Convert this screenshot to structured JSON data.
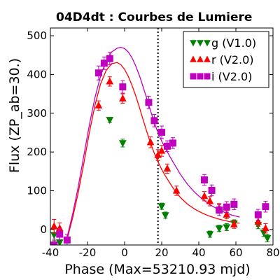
{
  "chart_data": {
    "type": "scatter",
    "title": "04D4dt : Courbes de Lumiere",
    "xlabel": "Phase (Max=53210.93 mjd)",
    "ylabel": "Flux (ZP_ab=30.)",
    "xlim": [
      -40,
      80
    ],
    "ylim": [
      -40,
      520
    ],
    "xticks": [
      -40,
      -20,
      0,
      20,
      40,
      60,
      80
    ],
    "yticks": [
      0,
      100,
      200,
      300,
      400,
      500
    ],
    "grid": false,
    "legend_position": "top-right",
    "max_marker_x": 18,
    "series": [
      {
        "name": "g (V1.0)",
        "marker": "triangle-down",
        "color": "#008000",
        "points": [
          {
            "x": -38,
            "y": -14,
            "err": 15
          },
          {
            "x": -35,
            "y": -33,
            "err": 14
          },
          {
            "x": -8,
            "y": 283,
            "err": 6
          },
          {
            "x": -1,
            "y": 223,
            "err": 10
          },
          {
            "x": 20,
            "y": 60,
            "err": 8
          },
          {
            "x": 22,
            "y": 37,
            "err": 8
          },
          {
            "x": 46,
            "y": -12,
            "err": 8
          },
          {
            "x": 51,
            "y": 3,
            "err": 8
          },
          {
            "x": 55,
            "y": 6,
            "err": 9
          },
          {
            "x": 59,
            "y": 16,
            "err": 9
          },
          {
            "x": 72,
            "y": 12,
            "err": 10
          },
          {
            "x": 75,
            "y": -8,
            "err": 10
          },
          {
            "x": 77,
            "y": -22,
            "err": 10
          }
        ]
      },
      {
        "name": "r (V2.0)",
        "marker": "triangle-up",
        "color": "#ff0000",
        "points": [
          {
            "x": -38,
            "y": 8,
            "err": 18
          },
          {
            "x": -35,
            "y": 3,
            "err": 14
          },
          {
            "x": -14,
            "y": 320,
            "err": 12
          },
          {
            "x": -8,
            "y": 382,
            "err": 12
          },
          {
            "x": -1,
            "y": 338,
            "err": 12
          },
          {
            "x": 14,
            "y": 225,
            "err": 14
          },
          {
            "x": 18,
            "y": 192,
            "err": 14
          },
          {
            "x": 20,
            "y": 203,
            "err": 14
          },
          {
            "x": 23,
            "y": 157,
            "err": 12
          },
          {
            "x": 28,
            "y": 100,
            "err": 12
          },
          {
            "x": 43,
            "y": 86,
            "err": 12
          },
          {
            "x": 46,
            "y": 73,
            "err": 12
          },
          {
            "x": 51,
            "y": 55,
            "err": 12
          },
          {
            "x": 55,
            "y": 38,
            "err": 10
          },
          {
            "x": 59,
            "y": 13,
            "err": 10
          },
          {
            "x": 72,
            "y": 20,
            "err": 12
          },
          {
            "x": 76,
            "y": 3,
            "err": 12
          }
        ]
      },
      {
        "name": "i (V2.0)",
        "marker": "square",
        "color": "#bf00bf",
        "points": [
          {
            "x": -38,
            "y": -40,
            "err": 15
          },
          {
            "x": -35,
            "y": -12,
            "err": 14
          },
          {
            "x": -31,
            "y": -27,
            "err": 14
          },
          {
            "x": -14,
            "y": 404,
            "err": 18
          },
          {
            "x": -11,
            "y": 429,
            "err": 16
          },
          {
            "x": -8,
            "y": 441,
            "err": 16
          },
          {
            "x": -1,
            "y": 368,
            "err": 16
          },
          {
            "x": 13,
            "y": 328,
            "err": 16
          },
          {
            "x": 16,
            "y": 281,
            "err": 16
          },
          {
            "x": 20,
            "y": 251,
            "err": 16
          },
          {
            "x": 23,
            "y": 215,
            "err": 14
          },
          {
            "x": 26,
            "y": 223,
            "err": 14
          },
          {
            "x": 43,
            "y": 128,
            "err": 14
          },
          {
            "x": 47,
            "y": 101,
            "err": 14
          },
          {
            "x": 51,
            "y": 50,
            "err": 14
          },
          {
            "x": 55,
            "y": 58,
            "err": 14
          },
          {
            "x": 59,
            "y": 65,
            "err": 14
          },
          {
            "x": 72,
            "y": 38,
            "err": 14
          },
          {
            "x": 76,
            "y": 59,
            "err": 14
          }
        ]
      }
    ],
    "model_curves": [
      {
        "color": "#ff0000",
        "x": [
          -31,
          -28,
          -25,
          -22,
          -19,
          -16,
          -13,
          -10,
          -7,
          -4,
          -2,
          0,
          2,
          4,
          6,
          8,
          10,
          12,
          14,
          16,
          18,
          20,
          22,
          24,
          26,
          28,
          30,
          34,
          38,
          42,
          46,
          50,
          54,
          58,
          62
        ],
        "y": [
          -25,
          30,
          95,
          170,
          250,
          320,
          375,
          410,
          428,
          431,
          425,
          413,
          395,
          372,
          345,
          315,
          283,
          252,
          223,
          197,
          175,
          155,
          138,
          123,
          108,
          95,
          83,
          65,
          52,
          42,
          34,
          28,
          23,
          19,
          16
        ]
      },
      {
        "color": "#bf00bf",
        "x": [
          -31,
          -28,
          -25,
          -22,
          -19,
          -16,
          -13,
          -10,
          -7,
          -4,
          -2,
          0,
          2,
          4,
          6,
          8,
          10,
          12,
          14,
          16,
          18,
          20,
          22,
          24,
          26,
          28,
          30,
          34,
          38,
          42,
          46,
          50,
          54,
          58,
          62
        ],
        "y": [
          -20,
          40,
          110,
          190,
          270,
          340,
          395,
          435,
          458,
          468,
          470,
          467,
          458,
          443,
          422,
          397,
          368,
          337,
          306,
          276,
          250,
          228,
          209,
          192,
          175,
          159,
          143,
          116,
          95,
          78,
          64,
          53,
          44,
          37,
          32
        ]
      }
    ]
  }
}
